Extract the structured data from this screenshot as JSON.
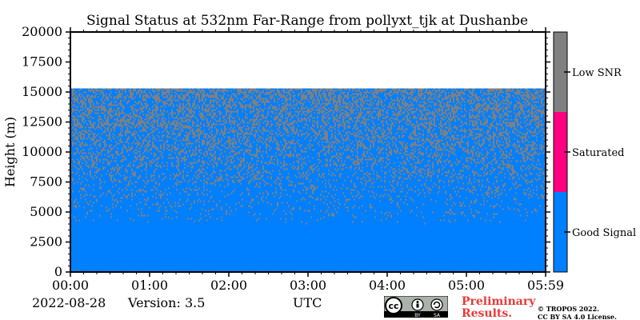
{
  "chart_data": {
    "type": "heatmap",
    "title": "Signal Status at 532nm Far-Range from pollyxt_tjk at Dushanbe",
    "xlabel": "UTC",
    "ylabel": "Height (m)",
    "x_ticks": [
      "00:00",
      "01:00",
      "02:00",
      "03:00",
      "04:00",
      "05:00",
      "05:59"
    ],
    "x_range_hours": [
      0,
      5.983
    ],
    "y_ticks": [
      0,
      2500,
      5000,
      7500,
      10000,
      12500,
      15000,
      17500,
      20000
    ],
    "ylim": [
      0,
      20000
    ],
    "data_top_height_m": 15300,
    "good_signal_below_m": 4000,
    "categories": [
      {
        "label": "Good Signal",
        "color": "#0080ff"
      },
      {
        "label": "Saturated",
        "color": "#ff0080"
      },
      {
        "label": "Low SNR",
        "color": "#808080"
      }
    ],
    "low_snr_fraction_by_height": [
      {
        "height_m": 4000,
        "fraction": 0.02
      },
      {
        "height_m": 6000,
        "fraction": 0.12
      },
      {
        "height_m": 8000,
        "fraction": 0.22
      },
      {
        "height_m": 10000,
        "fraction": 0.32
      },
      {
        "height_m": 12500,
        "fraction": 0.42
      },
      {
        "height_m": 15300,
        "fraction": 0.5
      }
    ]
  },
  "footer": {
    "date": "2022-08-28",
    "version": "Version: 3.5",
    "utc_label": "UTC",
    "preliminary_line1": "Preliminary",
    "preliminary_line2": "Results.",
    "copyright_line1": "© TROPOS 2022.",
    "copyright_line2": "CC BY SA 4.0 License.",
    "license_badge": {
      "text": "cc",
      "by": "BY",
      "sa": "SA"
    }
  }
}
